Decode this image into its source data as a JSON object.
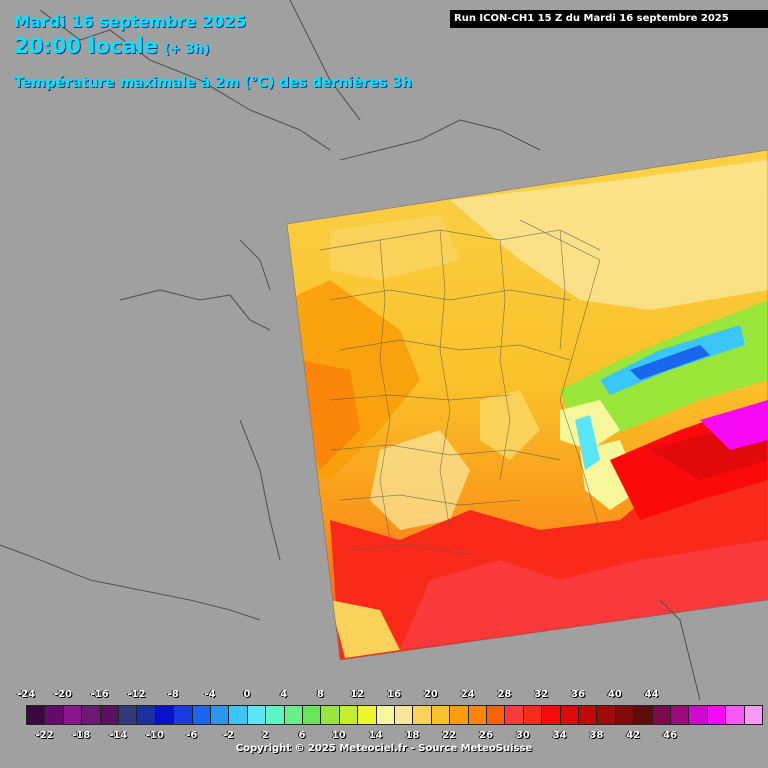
{
  "header": {
    "date": "Mardi 16 septembre 2025",
    "time": "20:00 locale",
    "offset": "(+ 3h)",
    "title": "Température maximale à 2m (°C) des dernières 3h",
    "run": "Run ICON-CH1 15 Z du Mardi 16 septembre 2025"
  },
  "legend": {
    "top_labels": [
      "-24",
      "-20",
      "-16",
      "-12",
      "-8",
      "-4",
      "0",
      "4",
      "8",
      "12",
      "16",
      "20",
      "24",
      "28",
      "32",
      "36",
      "40",
      "44"
    ],
    "bottom_labels": [
      "-22",
      "-18",
      "-14",
      "-10",
      "-6",
      "-2",
      "2",
      "6",
      "10",
      "14",
      "18",
      "22",
      "26",
      "30",
      "34",
      "38",
      "42",
      "46"
    ],
    "colors": [
      "#3a0840",
      "#660a6a",
      "#8a1590",
      "#6a1a70",
      "#56125e",
      "#303a78",
      "#1a30a0",
      "#0a10d0",
      "#1a3ae6",
      "#1a66ee",
      "#2a96f0",
      "#3ac6f6",
      "#5ae6f6",
      "#5af6c6",
      "#6aee8a",
      "#6ae65a",
      "#9ae63a",
      "#c6ee2a",
      "#eef62a",
      "#f6f69a",
      "#fae69a",
      "#fad25a",
      "#fac22a",
      "#fa9e0a",
      "#fa860a",
      "#fa620a",
      "#fa3a3a",
      "#fa2a1a",
      "#fa0a0a",
      "#e00a0a",
      "#c00a0a",
      "#a00a0a",
      "#800a0a",
      "#600a0a",
      "#7a0a4a",
      "#9a0a7a",
      "#ce0ace",
      "#f60af6",
      "#f65af6",
      "#f69af6"
    ],
    "copyright": "Copyright © 2025 Meteociel.fr - Source MeteoSuisse"
  }
}
